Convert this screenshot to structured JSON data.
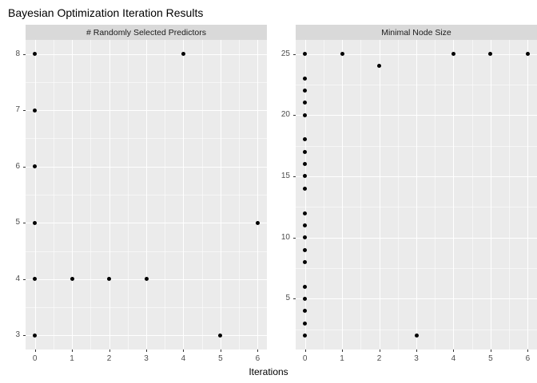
{
  "chart_data": {
    "type": "scatter",
    "title": "Bayesian Optimization Iteration Results",
    "xlabel": "Iterations",
    "legend": "none",
    "grid": "on",
    "x": {
      "ticks": [
        0,
        1,
        2,
        3,
        4,
        5,
        6
      ],
      "minor": [
        0.5,
        1.5,
        2.5,
        3.5,
        4.5,
        5.5
      ],
      "lim": [
        -0.25,
        6.25
      ]
    },
    "facets": [
      {
        "label": "# Randomly Selected Predictors",
        "ylim": [
          2.75,
          8.25
        ],
        "y_ticks": [
          3,
          4,
          5,
          6,
          7,
          8
        ],
        "y_minor": [
          3.5,
          4.5,
          5.5,
          6.5,
          7.5
        ],
        "points": [
          [
            0,
            3
          ],
          [
            0,
            4
          ],
          [
            0,
            5
          ],
          [
            0,
            6
          ],
          [
            0,
            7
          ],
          [
            0,
            8
          ],
          [
            1,
            4
          ],
          [
            2,
            4
          ],
          [
            3,
            4
          ],
          [
            4,
            8
          ],
          [
            5,
            3
          ],
          [
            6,
            5
          ]
        ]
      },
      {
        "label": "Minimal Node Size",
        "ylim": [
          0.85,
          26.15
        ],
        "y_ticks": [
          5,
          10,
          15,
          20,
          25
        ],
        "y_minor": [
          2.5,
          7.5,
          12.5,
          17.5,
          22.5
        ],
        "points": [
          [
            0,
            2
          ],
          [
            0,
            3
          ],
          [
            0,
            4
          ],
          [
            0,
            5
          ],
          [
            0,
            6
          ],
          [
            0,
            8
          ],
          [
            0,
            9
          ],
          [
            0,
            10
          ],
          [
            0,
            11
          ],
          [
            0,
            12
          ],
          [
            0,
            14
          ],
          [
            0,
            15
          ],
          [
            0,
            16
          ],
          [
            0,
            17
          ],
          [
            0,
            18
          ],
          [
            0,
            20
          ],
          [
            0,
            21
          ],
          [
            0,
            22
          ],
          [
            0,
            23
          ],
          [
            0,
            25
          ],
          [
            1,
            25
          ],
          [
            2,
            24
          ],
          [
            3,
            2
          ],
          [
            4,
            25
          ],
          [
            5,
            25
          ],
          [
            6,
            25
          ]
        ]
      }
    ],
    "colors": {
      "panel_bg": "#EBEBEB",
      "grid_major": "#FFFFFF",
      "strip_bg": "#D9D9D9",
      "point": "#000000",
      "tick": "#333333",
      "axis_text": "#4D4D4D",
      "title_text": "#000000"
    }
  }
}
